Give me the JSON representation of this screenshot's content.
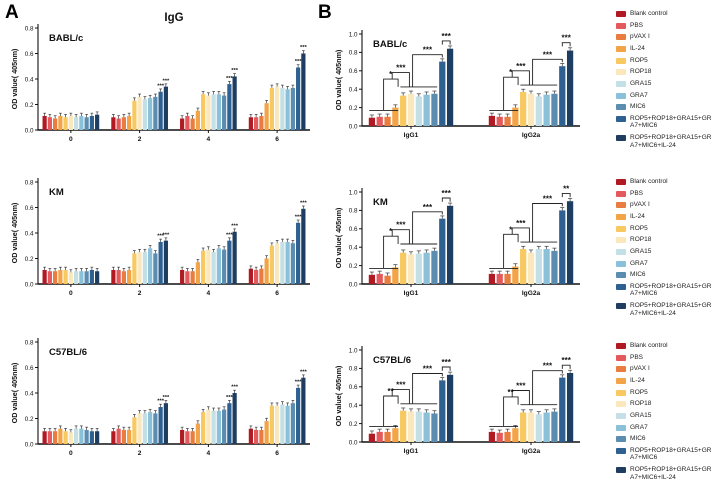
{
  "figure": {
    "panel_a": "A",
    "panel_b": "B"
  },
  "legend": {
    "items": [
      {
        "label": "Blank control",
        "color": "#B11A23"
      },
      {
        "label": "PBS",
        "color": "#E4595C"
      },
      {
        "label": "pVAX I",
        "color": "#E97C3F"
      },
      {
        "label": "IL-24",
        "color": "#F3A446"
      },
      {
        "label": "ROP5",
        "color": "#F8C861"
      },
      {
        "label": "ROP18",
        "color": "#FAE7BC"
      },
      {
        "label": "GRA15",
        "color": "#C2E0E6"
      },
      {
        "label": "GRA7",
        "color": "#8AC1D8"
      },
      {
        "label": "MIC6",
        "color": "#5B8DB0"
      },
      {
        "label": "ROP5+ROP18+GRA15+GRA7+MIC6",
        "color": "#2E6191"
      },
      {
        "label": "ROP5+ROP18+GRA15+GRA7+MIC6+IL-24",
        "color": "#1D3D61"
      }
    ]
  },
  "chart_data": [
    {
      "id": "a1",
      "panel": "A",
      "type": "bar",
      "strain": "BABL/c",
      "top_title": "IgG",
      "ylabel": "OD value( 405nm)",
      "ylim": [
        0,
        0.8
      ],
      "yticks": [
        "0.0",
        "0.2",
        "0.4",
        "0.6",
        "0.8"
      ],
      "categories": [
        "0",
        "2",
        "4",
        "6"
      ],
      "err": 0.022,
      "groups": [
        [
          0.11,
          0.1,
          0.09,
          0.11,
          0.1,
          0.11,
          0.1,
          0.11,
          0.1,
          0.11,
          0.12
        ],
        [
          0.1,
          0.09,
          0.1,
          0.11,
          0.23,
          0.26,
          0.24,
          0.25,
          0.26,
          0.3,
          0.34
        ],
        [
          0.09,
          0.11,
          0.09,
          0.15,
          0.28,
          0.27,
          0.28,
          0.28,
          0.27,
          0.36,
          0.42
        ],
        [
          0.1,
          0.1,
          0.11,
          0.21,
          0.33,
          0.34,
          0.33,
          0.32,
          0.33,
          0.49,
          0.6
        ]
      ],
      "bar_stars": [
        [
          "",
          ""
        ],
        [
          "***",
          "***"
        ],
        [
          "***",
          "***"
        ],
        [
          "***",
          "***"
        ]
      ]
    },
    {
      "id": "a2",
      "panel": "A",
      "type": "bar",
      "strain": "KM",
      "ylabel": "OD value( 405nm)",
      "ylim": [
        0,
        0.8
      ],
      "yticks": [
        "0.0",
        "0.2",
        "0.4",
        "0.6",
        "0.8"
      ],
      "categories": [
        "0",
        "2",
        "4",
        "6"
      ],
      "err": 0.022,
      "groups": [
        [
          0.11,
          0.1,
          0.1,
          0.11,
          0.11,
          0.09,
          0.1,
          0.1,
          0.1,
          0.11,
          0.1
        ],
        [
          0.11,
          0.11,
          0.1,
          0.11,
          0.24,
          0.25,
          0.25,
          0.28,
          0.24,
          0.33,
          0.34
        ],
        [
          0.11,
          0.1,
          0.1,
          0.17,
          0.26,
          0.27,
          0.25,
          0.28,
          0.27,
          0.34,
          0.41
        ],
        [
          0.12,
          0.11,
          0.12,
          0.2,
          0.3,
          0.32,
          0.33,
          0.33,
          0.32,
          0.48,
          0.59
        ]
      ],
      "bar_stars": [
        [
          "",
          ""
        ],
        [
          "***",
          "***"
        ],
        [
          "***",
          "***"
        ],
        [
          "***",
          "***"
        ]
      ]
    },
    {
      "id": "a3",
      "panel": "A",
      "type": "bar",
      "strain": "C57BL/6",
      "ylabel": "OD value( 405nm)",
      "ylim": [
        0,
        0.8
      ],
      "yticks": [
        "0.0",
        "0.2",
        "0.4",
        "0.6",
        "0.8"
      ],
      "categories": [
        "0",
        "2",
        "4",
        "6"
      ],
      "err": 0.022,
      "groups": [
        [
          0.1,
          0.1,
          0.1,
          0.12,
          0.1,
          0.09,
          0.12,
          0.12,
          0.11,
          0.1,
          0.1
        ],
        [
          0.1,
          0.12,
          0.11,
          0.11,
          0.21,
          0.24,
          0.24,
          0.25,
          0.24,
          0.29,
          0.32
        ],
        [
          0.11,
          0.1,
          0.1,
          0.16,
          0.25,
          0.27,
          0.26,
          0.26,
          0.27,
          0.32,
          0.4
        ],
        [
          0.12,
          0.11,
          0.11,
          0.18,
          0.3,
          0.3,
          0.31,
          0.3,
          0.32,
          0.44,
          0.52
        ]
      ],
      "bar_stars": [
        [
          "",
          ""
        ],
        [
          "***",
          "***"
        ],
        [
          "***",
          "***"
        ],
        [
          "***",
          "***"
        ]
      ]
    },
    {
      "id": "b1",
      "panel": "B",
      "type": "bar",
      "strain": "BABL/c",
      "ylabel": "OD value( 405nm)",
      "ylim": [
        0,
        1.0
      ],
      "yticks": [
        "0.0",
        "0.2",
        "0.4",
        "0.6",
        "0.8",
        "1.0"
      ],
      "categories": [
        "IgG1",
        "IgG2a"
      ],
      "err": 0.03,
      "groups": [
        [
          0.09,
          0.1,
          0.1,
          0.2,
          0.33,
          0.35,
          0.32,
          0.34,
          0.35,
          0.7,
          0.84
        ],
        [
          0.11,
          0.1,
          0.1,
          0.2,
          0.37,
          0.35,
          0.32,
          0.34,
          0.35,
          0.65,
          0.82
        ]
      ],
      "bracket_stars": [
        [
          "*",
          "***",
          "***",
          "***"
        ],
        [
          "*",
          "***",
          "***",
          "***"
        ]
      ]
    },
    {
      "id": "b2",
      "panel": "B",
      "type": "bar",
      "strain": "KM",
      "ylabel": "OD value( 405nm)",
      "ylim": [
        0,
        1.0
      ],
      "yticks": [
        "0.0",
        "0.2",
        "0.4",
        "0.6",
        "0.8",
        "1.0"
      ],
      "categories": [
        "IgG1",
        "IgG2a"
      ],
      "err": 0.03,
      "groups": [
        [
          0.1,
          0.11,
          0.09,
          0.18,
          0.34,
          0.32,
          0.33,
          0.34,
          0.36,
          0.71,
          0.85
        ],
        [
          0.11,
          0.11,
          0.11,
          0.19,
          0.38,
          0.34,
          0.38,
          0.38,
          0.36,
          0.8,
          0.9
        ]
      ],
      "bracket_stars": [
        [
          "*",
          "***",
          "***",
          "***"
        ],
        [
          "*",
          "***",
          "***",
          "**"
        ]
      ]
    },
    {
      "id": "b3",
      "panel": "B",
      "type": "bar",
      "strain": "C57BL/6",
      "ylabel": "OD value( 405nm)",
      "ylim": [
        0,
        1.0
      ],
      "yticks": [
        "0.0",
        "0.2",
        "0.4",
        "0.6",
        "0.8",
        "1.0"
      ],
      "categories": [
        "IgG1",
        "IgG2a"
      ],
      "err": 0.03,
      "groups": [
        [
          0.09,
          0.11,
          0.11,
          0.15,
          0.34,
          0.33,
          0.33,
          0.32,
          0.31,
          0.67,
          0.73
        ],
        [
          0.11,
          0.1,
          0.11,
          0.15,
          0.32,
          0.32,
          0.3,
          0.32,
          0.33,
          0.7,
          0.75
        ]
      ],
      "bracket_stars": [
        [
          "**",
          "***",
          "***",
          "***"
        ],
        [
          "**",
          "***",
          "***",
          "***"
        ]
      ]
    }
  ]
}
